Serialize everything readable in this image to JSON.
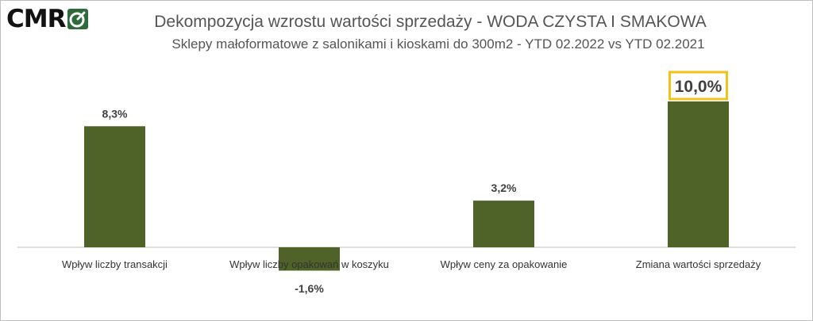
{
  "logo": {
    "text": "CMR",
    "mark_color": "#2e6b3a"
  },
  "header": {
    "title": "Dekompozycja  wzrostu wartości sprzedaży - WODA CZYSTA I SMAKOWA",
    "subtitle": "Sklepy małoformatowe z salonikami i kioskami do 300m2 - YTD 02.2022 vs YTD 02.2021"
  },
  "chart_data": {
    "type": "bar",
    "title": "Dekompozycja  wzrostu wartości sprzedaży - WODA CZYSTA I SMAKOWA",
    "subtitle": "Sklepy małoformatowe z salonikami i kioskami do 300m2 - YTD 02.2022 vs YTD 02.2021",
    "categories": [
      "Wpływ liczby transakcji",
      "Wpływ liczby opakowań w koszyku",
      "Wpływ ceny za opakowanie",
      "Zmiana wartości sprzedaży"
    ],
    "values": [
      8.3,
      -1.6,
      3.2,
      10.0
    ],
    "data_labels": [
      "8,3%",
      "-1,6%",
      "3,2%",
      "10,0%"
    ],
    "highlighted_index": 3,
    "bar_color": "#4f6228",
    "highlight_color": "#f2c21a",
    "xlabel": "",
    "ylabel": "",
    "grid": false
  }
}
